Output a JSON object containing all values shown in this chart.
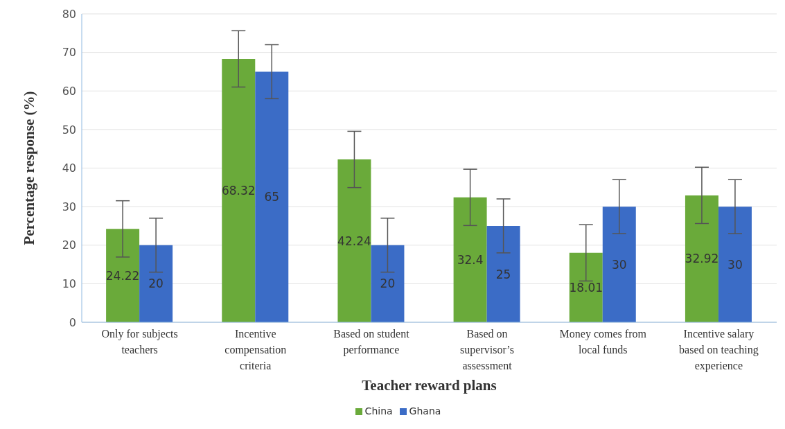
{
  "chart_data": {
    "type": "bar",
    "xlabel": "Teacher reward plans",
    "ylabel": "Percentage response (%)",
    "categories": [
      "Only for subjects teachers",
      "Incentive compensation criteria",
      "Based on student performance",
      "Based on supervisor’s assessment",
      "Money comes from local funds",
      "Incentive salary based on teaching experience"
    ],
    "series": [
      {
        "name": "China",
        "color": "#6aaa3a",
        "values": [
          24.22,
          68.32,
          42.24,
          32.4,
          18.01,
          32.92
        ],
        "errors": [
          7.3,
          7.3,
          7.3,
          7.3,
          7.3,
          7.3
        ]
      },
      {
        "name": "Ghana",
        "color": "#3b6cc6",
        "values": [
          20,
          65,
          20,
          25,
          30,
          30
        ],
        "errors": [
          7,
          7,
          7,
          7,
          7,
          7
        ]
      }
    ],
    "ylim": [
      0,
      80
    ],
    "yticks": [
      0,
      10,
      20,
      30,
      40,
      50,
      60,
      70,
      80
    ],
    "grid": "y",
    "legend": "bottom",
    "data_labels": true
  }
}
